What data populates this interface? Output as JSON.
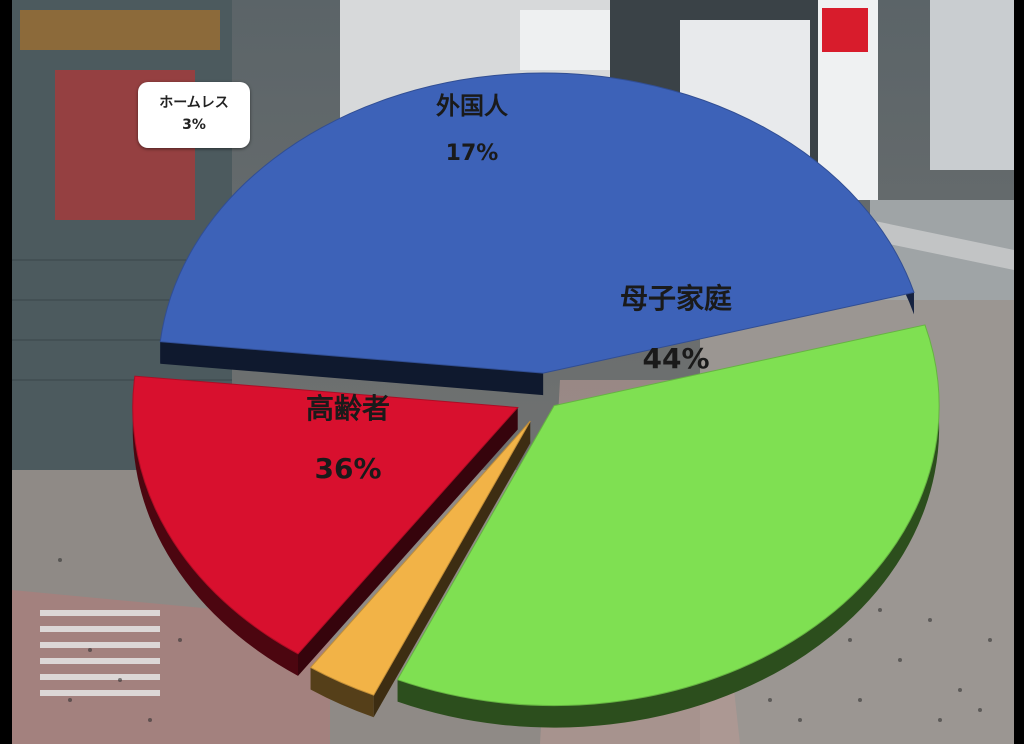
{
  "chart_data": {
    "type": "pie",
    "title": "",
    "slices": [
      {
        "label": "母子家庭",
        "value": 44,
        "value_label": "44%",
        "color": "#3d62b8"
      },
      {
        "label": "高齢者",
        "value": 36,
        "value_label": "36%",
        "color": "#7fe052"
      },
      {
        "label": "ホームレス",
        "value": 3,
        "value_label": "3%",
        "color": "#f2b347"
      },
      {
        "label": "外国人",
        "value": 17,
        "value_label": "17%",
        "color": "#d8102e"
      }
    ],
    "style": "3d-exploded",
    "background": "aerial photo of city crossing"
  }
}
